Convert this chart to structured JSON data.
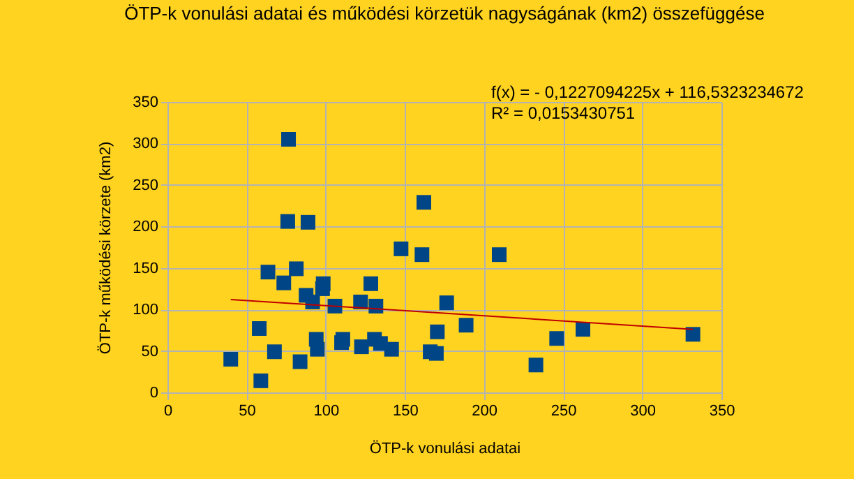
{
  "chart_data": {
    "type": "scatter",
    "title": "ÖTP-k vonulási adatai és működési körzetük nagyságának (km2) összefüggése",
    "xlabel": "ÖTP-k vonulási adatai",
    "ylabel": "ÖTP-k működési körzete (km2)",
    "annotations": [
      "f(x) =  - 0,1227094225x + 116,5323234672",
      "R² = 0,0153430751"
    ],
    "series": [
      {
        "color": "#004586",
        "marker": "square",
        "x": [
          40,
          59,
          58,
          67.6,
          63.5,
          73.5,
          76.5,
          76,
          81.4,
          83.8,
          88.8,
          87.6,
          91.7,
          94,
          94.7,
          98.4,
          98,
          105.8,
          110.8,
          110,
          122,
          122.6,
          128.5,
          131.7,
          130.8,
          134.6,
          141.6,
          147.6,
          162,
          160.8,
          209.6,
          176.4,
          188.7,
          170.5,
          166,
          169.9,
          232.8,
          245.9,
          262.5,
          332
        ],
        "values": [
          40,
          14,
          77,
          49,
          145,
          132,
          305,
          206,
          149,
          37,
          205,
          117,
          109,
          64,
          52,
          131,
          125,
          104,
          64,
          60,
          109,
          55,
          131,
          104,
          64,
          59,
          52,
          173,
          229,
          166,
          166,
          108,
          81,
          73,
          49,
          47,
          33,
          65,
          76,
          70
        ]
      },
      {
        "type": "line",
        "color": "#c00000",
        "marker": "none",
        "x": [
          40,
          332
        ],
        "values": [
          112,
          76
        ]
      }
    ],
    "xlim": [
      0,
      350
    ],
    "ylim": [
      0,
      350
    ],
    "xticks": [
      0,
      50,
      100,
      150,
      200,
      250,
      300,
      350
    ],
    "yticks": [
      0,
      50,
      100,
      150,
      200,
      250,
      300,
      350
    ],
    "grid": true
  }
}
